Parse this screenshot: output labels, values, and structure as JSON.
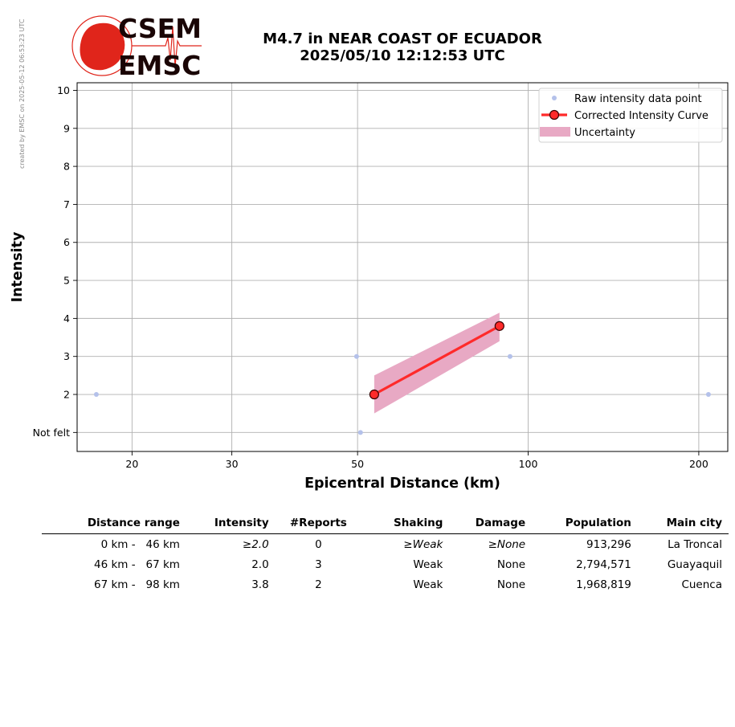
{
  "watermark": "created by EMSC on 2025-05-12 06:53:23 UTC",
  "logo": {
    "line1": "CSEM",
    "line2": "EMSC",
    "accent_color": "#e0251b"
  },
  "title": {
    "line1": "M4.7 in NEAR COAST OF ECUADOR",
    "line2": "2025/05/10 12:12:53 UTC"
  },
  "chart_data": {
    "type": "scatter",
    "xlabel": "Epicentral Distance (km)",
    "ylabel": "Intensity",
    "x_scale": "log",
    "xlim": [
      16,
      225
    ],
    "ylim": [
      0.5,
      10.2
    ],
    "x_ticks": [
      20,
      30,
      50,
      100,
      200
    ],
    "x_tick_labels": [
      "20",
      "30",
      "50",
      "100",
      "200"
    ],
    "y_ticks": [
      1,
      2,
      3,
      4,
      5,
      6,
      7,
      8,
      9,
      10
    ],
    "y_tick_labels": [
      "Not felt",
      "2",
      "3",
      "4",
      "5",
      "6",
      "7",
      "8",
      "9",
      "10"
    ],
    "grid": true,
    "legend_position": "top-right",
    "series": [
      {
        "name": "Raw intensity data point",
        "kind": "points",
        "color": "#b4c1ea",
        "points": [
          {
            "x": 17.3,
            "y": 2
          },
          {
            "x": 49.8,
            "y": 3
          },
          {
            "x": 50.6,
            "y": 1
          },
          {
            "x": 92.9,
            "y": 3
          },
          {
            "x": 208,
            "y": 2
          }
        ]
      },
      {
        "name": "Corrected Intensity Curve",
        "kind": "line",
        "color": "#ff2a2a",
        "marker_edge": "#3a0000",
        "points": [
          {
            "x": 53.5,
            "y": 2.0
          },
          {
            "x": 89.0,
            "y": 3.8
          }
        ]
      },
      {
        "name": "Uncertainty",
        "kind": "band",
        "color": "#e8a9c4",
        "points": [
          {
            "x": 53.5,
            "lower": 1.5,
            "upper": 2.5
          },
          {
            "x": 89.0,
            "lower": 3.4,
            "upper": 4.15
          }
        ]
      }
    ]
  },
  "table": {
    "headers": [
      "Distance range",
      "Intensity",
      "#Reports",
      "Shaking",
      "Damage",
      "Population",
      "Main city"
    ],
    "rows": [
      {
        "range": "0 km -   46 km",
        "intensity": "≥2.0",
        "reports": "0",
        "shaking": "≥Weak",
        "damage": "≥None",
        "population": "913,296",
        "city": "La Troncal"
      },
      {
        "range": "46 km -   67 km",
        "intensity": "2.0",
        "reports": "3",
        "shaking": "Weak",
        "damage": "None",
        "population": "2,794,571",
        "city": "Guayaquil"
      },
      {
        "range": "67 km -   98 km",
        "intensity": "3.8",
        "reports": "2",
        "shaking": "Weak",
        "damage": "None",
        "population": "1,968,819",
        "city": "Cuenca"
      }
    ]
  }
}
